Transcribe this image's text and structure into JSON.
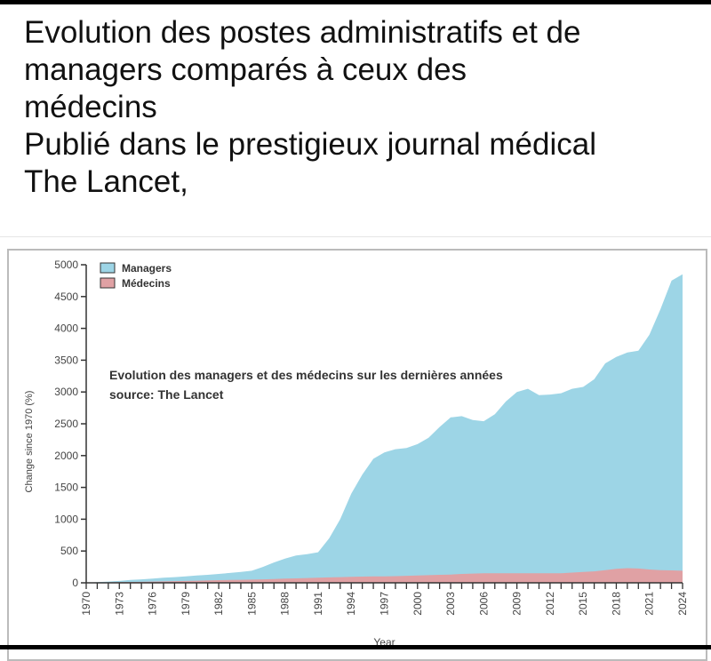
{
  "post": {
    "lines": [
      "Evolution des postes administratifs et de",
      "managers comparés à ceux des",
      "médecins",
      "Publié dans le prestigieux journal médical",
      "The Lancet,"
    ]
  },
  "chart_data": {
    "type": "area",
    "title": "",
    "annotation": [
      "Evolution des managers et des médecins sur les dernières années",
      "source: The Lancet"
    ],
    "xlabel": "Year",
    "ylabel": "Change since 1970 (%)",
    "ylim": [
      0,
      5000
    ],
    "yticks": [
      0,
      500,
      1000,
      1500,
      2000,
      2500,
      3000,
      3500,
      4000,
      4500,
      5000
    ],
    "xlim": [
      1970,
      2024
    ],
    "xtick_labels": [
      1970,
      1973,
      1976,
      1979,
      1982,
      1985,
      1988,
      1991,
      1994,
      1997,
      2000,
      2003,
      2006,
      2009,
      2012,
      2015,
      2018,
      2021,
      2024
    ],
    "legend_placement": "top-left",
    "grid": false,
    "x": [
      1970,
      1971,
      1972,
      1973,
      1974,
      1975,
      1976,
      1977,
      1978,
      1979,
      1980,
      1981,
      1982,
      1983,
      1984,
      1985,
      1986,
      1987,
      1988,
      1989,
      1990,
      1991,
      1992,
      1993,
      1994,
      1995,
      1996,
      1997,
      1998,
      1999,
      2000,
      2001,
      2002,
      2003,
      2004,
      2005,
      2006,
      2007,
      2008,
      2009,
      2010,
      2011,
      2012,
      2013,
      2014,
      2015,
      2016,
      2017,
      2018,
      2019,
      2020,
      2021,
      2022,
      2023,
      2024
    ],
    "series": [
      {
        "name": "Managers",
        "color": "#9dd5e6",
        "values": [
          0,
          10,
          20,
          30,
          45,
          55,
          65,
          80,
          90,
          100,
          115,
          125,
          140,
          155,
          170,
          190,
          250,
          320,
          380,
          430,
          450,
          480,
          700,
          1000,
          1400,
          1700,
          1950,
          2050,
          2100,
          2120,
          2180,
          2280,
          2450,
          2600,
          2620,
          2560,
          2540,
          2650,
          2850,
          3000,
          3050,
          2950,
          2960,
          2980,
          3050,
          3080,
          3200,
          3450,
          3550,
          3620,
          3650,
          3900,
          4300,
          4750,
          4850
        ]
      },
      {
        "name": "Médecins",
        "color": "#e0a1a4",
        "values": [
          0,
          3,
          7,
          10,
          13,
          16,
          20,
          23,
          27,
          30,
          34,
          38,
          42,
          45,
          48,
          50,
          55,
          60,
          65,
          70,
          75,
          80,
          85,
          90,
          95,
          98,
          100,
          100,
          105,
          110,
          115,
          120,
          125,
          130,
          140,
          145,
          150,
          150,
          150,
          150,
          150,
          150,
          150,
          150,
          160,
          170,
          180,
          200,
          220,
          230,
          225,
          210,
          200,
          195,
          190
        ]
      }
    ]
  }
}
